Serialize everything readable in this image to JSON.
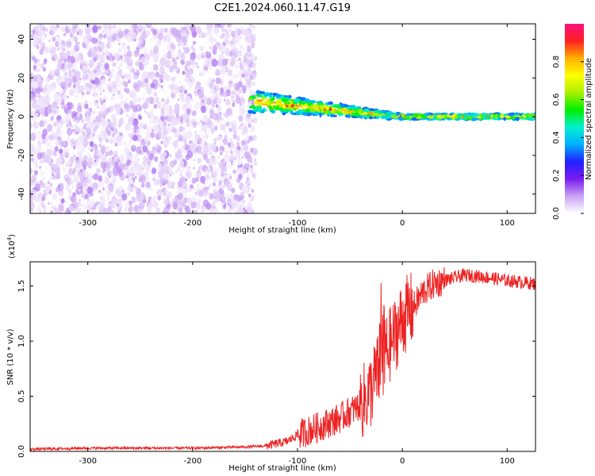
{
  "title": "C2E1.2024.060.11.47.G19",
  "chart_data": [
    {
      "type": "heatmap",
      "xlabel": "Height of straight line (km)",
      "ylabel": "Frequency (Hz)",
      "xlim": [
        -355,
        127
      ],
      "ylim": [
        -50,
        48
      ],
      "x_ticks": [
        -300,
        -200,
        -100,
        0,
        100
      ],
      "y_ticks": [
        -40,
        -20,
        0,
        20,
        40
      ],
      "colorbar": {
        "label": "Normalized spectral amplitude",
        "range": [
          0,
          1
        ],
        "ticks": [
          0.0,
          0.2,
          0.4,
          0.6,
          0.8
        ],
        "colors": [
          "#ffffff",
          "#c9a3f2",
          "#7a1cf0",
          "#2020ff",
          "#00b0ff",
          "#00f0d0",
          "#00ee00",
          "#a8f000",
          "#ffff00",
          "#ffb000",
          "#ff2020",
          "#ff1080"
        ]
      },
      "regions": [
        {
          "name": "noise",
          "x_range": [
            -355,
            -140
          ],
          "freq_range": [
            -50,
            48
          ],
          "amplitude_range": [
            0.02,
            0.12
          ]
        },
        {
          "name": "signal-band",
          "x_range": [
            -145,
            127
          ],
          "freq_start": 8,
          "freq_end": 0,
          "amplitude_range": [
            0.3,
            0.95
          ]
        }
      ],
      "grid": false,
      "legend": "colorbar-right"
    },
    {
      "type": "line",
      "xlabel": "Height of straight line (km)",
      "ylabel": "SNR (10 * v/v)",
      "y_multiplier": "(x10",
      "y_exponent": "4",
      "y_multiplier_close": ")",
      "xlim": [
        -355,
        127
      ],
      "ylim": [
        0,
        1.72
      ],
      "x_ticks": [
        -300,
        -200,
        -100,
        0,
        100
      ],
      "y_ticks": [
        0.0,
        0.5,
        1.0,
        1.5
      ],
      "color": "#ee2222",
      "series": [
        {
          "x": [
            -355,
            -300,
            -250,
            -200,
            -150,
            -130,
            -110,
            -100,
            -80,
            -60,
            -40,
            -30,
            -25,
            -20,
            -15,
            -10,
            -5,
            0,
            5,
            10,
            20,
            30,
            40,
            60,
            80,
            100,
            127
          ],
          "y": [
            0.02,
            0.03,
            0.03,
            0.03,
            0.04,
            0.05,
            0.09,
            0.15,
            0.22,
            0.3,
            0.42,
            0.55,
            0.7,
            0.75,
            0.9,
            1.0,
            1.1,
            1.2,
            1.26,
            1.3,
            1.45,
            1.52,
            1.55,
            1.6,
            1.58,
            1.55,
            1.52
          ]
        }
      ],
      "grid": false
    }
  ]
}
